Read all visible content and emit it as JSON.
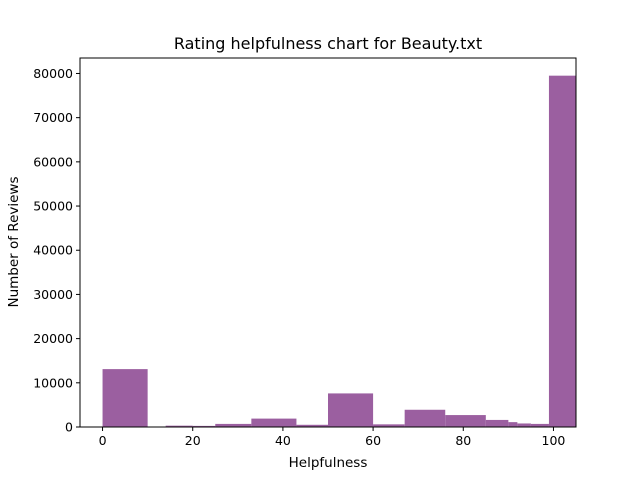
{
  "chart_data": {
    "type": "bar",
    "title": "Rating helpfulness chart for Beauty.txt",
    "xlabel": "Helpfulness",
    "ylabel": "Number of Reviews",
    "xlim": [
      -5,
      105
    ],
    "ylim": [
      0,
      83500
    ],
    "xticks": [
      "0",
      "20",
      "40",
      "60",
      "80",
      "100"
    ],
    "xtick_values": [
      0,
      20,
      40,
      60,
      80,
      100
    ],
    "yticks": [
      "0",
      "10000",
      "20000",
      "30000",
      "40000",
      "50000",
      "60000",
      "70000",
      "80000"
    ],
    "ytick_values": [
      0,
      10000,
      20000,
      30000,
      40000,
      50000,
      60000,
      70000,
      80000
    ],
    "bar_color": "#9b5fa0",
    "grid": false,
    "bins": [
      {
        "x0": 0,
        "x1": 10,
        "value": 13100
      },
      {
        "x0": 14,
        "x1": 20,
        "value": 300
      },
      {
        "x0": 20,
        "x1": 25,
        "value": 250
      },
      {
        "x0": 25,
        "x1": 33,
        "value": 700
      },
      {
        "x0": 33,
        "x1": 43,
        "value": 1900
      },
      {
        "x0": 43,
        "x1": 50,
        "value": 500
      },
      {
        "x0": 50,
        "x1": 60,
        "value": 7600
      },
      {
        "x0": 60,
        "x1": 67,
        "value": 600
      },
      {
        "x0": 67,
        "x1": 76,
        "value": 3900
      },
      {
        "x0": 76,
        "x1": 85,
        "value": 2700
      },
      {
        "x0": 85,
        "x1": 90,
        "value": 1600
      },
      {
        "x0": 90,
        "x1": 92,
        "value": 1100
      },
      {
        "x0": 92,
        "x1": 95,
        "value": 800
      },
      {
        "x0": 95,
        "x1": 99,
        "value": 700
      },
      {
        "x0": 99,
        "x1": 105,
        "value": 79500
      }
    ]
  }
}
